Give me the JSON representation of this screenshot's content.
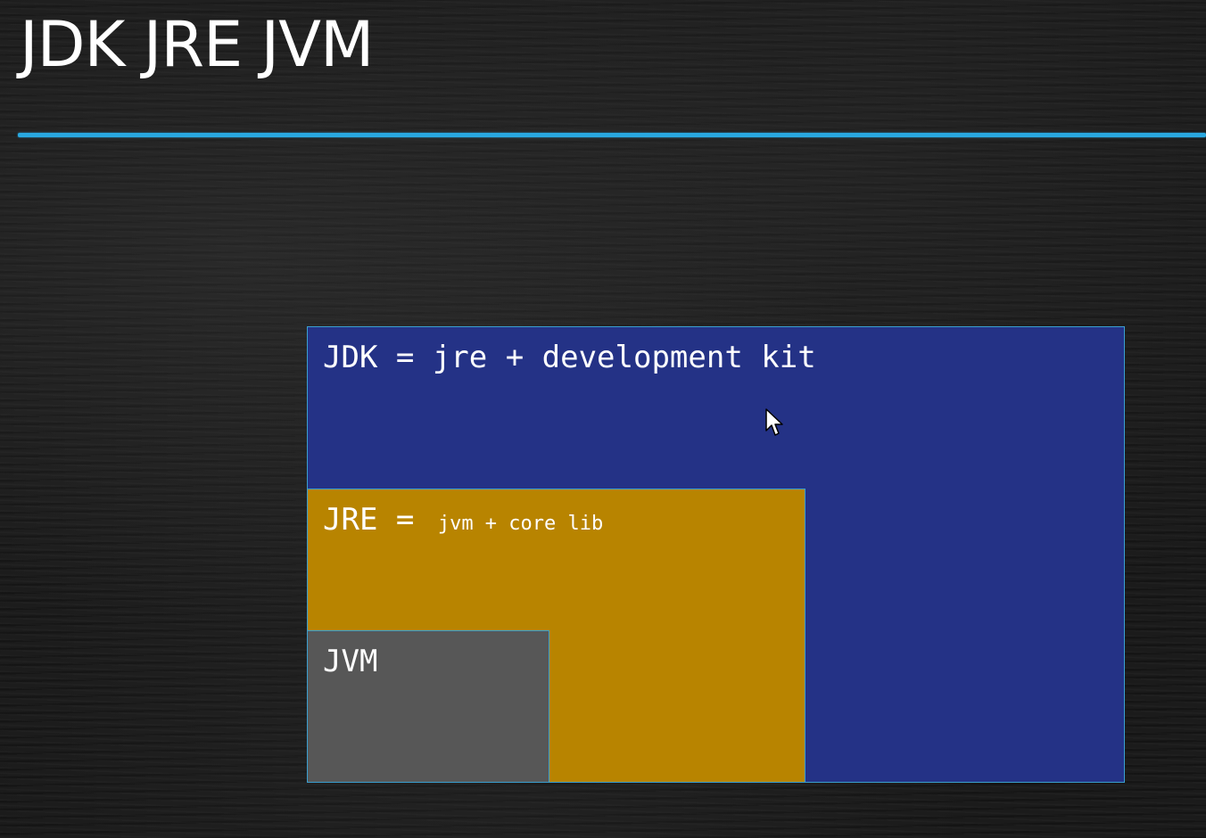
{
  "slide": {
    "title": "JDK JRE JVM"
  },
  "diagram": {
    "jdk": {
      "label": "JDK = jre + development kit",
      "color": "#243286"
    },
    "jre": {
      "label_main": "JRE = ",
      "label_sub": "jvm + core lib",
      "color": "#b88400"
    },
    "jvm": {
      "label": "JVM",
      "color": "#575757"
    }
  },
  "colors": {
    "accent_line": "#29a8e0",
    "box_border": "#3a9fd0"
  },
  "icons": {
    "cursor": "mouse-pointer-icon"
  }
}
